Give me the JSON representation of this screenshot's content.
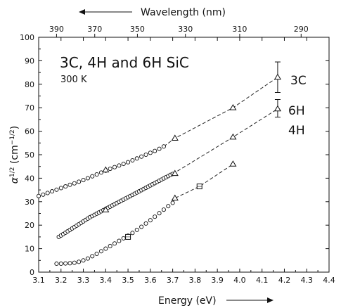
{
  "chart_data": {
    "type": "scatter",
    "title": "3C, 4H and 6H SiC",
    "subtitle": "300  K",
    "xlabel": "Energy (eV)",
    "ylabel": "α^(1/2) (cm^-1/2)",
    "ylabel_parts": {
      "alpha": "α",
      "exp_outer": "1/2",
      "open": " (cm",
      "exp_inner": "−1/2",
      "close": ")"
    },
    "x2label": "Wavelength (nm)",
    "xlim": [
      3.1,
      4.4
    ],
    "ylim": [
      0,
      100
    ],
    "x_ticks": [
      "3.1",
      "3.2",
      "3.3",
      "3.4",
      "3.5",
      "3.6",
      "3.7",
      "3.8",
      "3.9",
      "4.0",
      "4.1",
      "4.2",
      "4.3",
      "4.4"
    ],
    "y_ticks": [
      "0",
      "10",
      "20",
      "30",
      "40",
      "50",
      "60",
      "70",
      "80",
      "90",
      "100"
    ],
    "wavelength_ticks": [
      {
        "label": "390",
        "energy": 3.18
      },
      {
        "label": "370",
        "energy": 3.351
      },
      {
        "label": "350",
        "energy": 3.542
      },
      {
        "label": "330",
        "energy": 3.757
      },
      {
        "label": "310",
        "energy": 4.0
      },
      {
        "label": "290",
        "energy": 4.275
      }
    ],
    "grid": false,
    "series": [
      {
        "name": "3C",
        "circles": [
          [
            3.1,
            32.4
          ],
          [
            3.12,
            33.0
          ],
          [
            3.14,
            33.7
          ],
          [
            3.16,
            34.4
          ],
          [
            3.18,
            35.1
          ],
          [
            3.2,
            35.8
          ],
          [
            3.22,
            36.5
          ],
          [
            3.24,
            37.2
          ],
          [
            3.26,
            37.8
          ],
          [
            3.28,
            38.5
          ],
          [
            3.3,
            39.2
          ],
          [
            3.32,
            40.0
          ],
          [
            3.34,
            40.8
          ],
          [
            3.36,
            41.6
          ],
          [
            3.38,
            42.4
          ],
          [
            3.4,
            43.2
          ],
          [
            3.42,
            44.0
          ],
          [
            3.44,
            44.7
          ],
          [
            3.46,
            45.4
          ],
          [
            3.48,
            46.1
          ],
          [
            3.5,
            46.8
          ],
          [
            3.52,
            47.6
          ],
          [
            3.54,
            48.4
          ],
          [
            3.56,
            49.2
          ],
          [
            3.58,
            50.0
          ],
          [
            3.6,
            50.8
          ],
          [
            3.62,
            51.6
          ],
          [
            3.64,
            52.5
          ],
          [
            3.66,
            53.5
          ]
        ],
        "triangles": [
          [
            3.4,
            43.5
          ],
          [
            3.71,
            57.0
          ],
          [
            3.97,
            70.0
          ],
          [
            4.17,
            83.0
          ]
        ],
        "error_bars": [
          {
            "x": 4.17,
            "y": 83.0,
            "low": 76.5,
            "high": 89.5
          }
        ],
        "dashed": [
          [
            3.66,
            53.5
          ],
          [
            3.71,
            57.0
          ],
          [
            3.97,
            70.0
          ],
          [
            4.17,
            83.0
          ]
        ],
        "label": "3C"
      },
      {
        "name": "6H",
        "circles": [
          [
            3.19,
            15.0
          ],
          [
            3.2,
            15.6
          ],
          [
            3.21,
            16.2
          ],
          [
            3.22,
            16.8
          ],
          [
            3.23,
            17.4
          ],
          [
            3.24,
            18.0
          ],
          [
            3.25,
            18.6
          ],
          [
            3.26,
            19.2
          ],
          [
            3.27,
            19.8
          ],
          [
            3.28,
            20.4
          ],
          [
            3.29,
            21.0
          ],
          [
            3.3,
            21.6
          ],
          [
            3.31,
            22.2
          ],
          [
            3.32,
            22.8
          ],
          [
            3.33,
            23.4
          ],
          [
            3.34,
            23.9
          ],
          [
            3.35,
            24.4
          ],
          [
            3.36,
            24.9
          ],
          [
            3.37,
            25.4
          ],
          [
            3.38,
            25.9
          ],
          [
            3.39,
            26.4
          ],
          [
            3.4,
            26.9
          ],
          [
            3.41,
            27.4
          ],
          [
            3.42,
            27.9
          ],
          [
            3.43,
            28.4
          ],
          [
            3.44,
            28.9
          ],
          [
            3.45,
            29.4
          ],
          [
            3.46,
            29.9
          ],
          [
            3.47,
            30.4
          ],
          [
            3.48,
            30.9
          ],
          [
            3.49,
            31.4
          ],
          [
            3.5,
            31.9
          ],
          [
            3.51,
            32.4
          ],
          [
            3.52,
            32.9
          ],
          [
            3.53,
            33.4
          ],
          [
            3.54,
            33.9
          ],
          [
            3.55,
            34.4
          ],
          [
            3.56,
            34.9
          ],
          [
            3.57,
            35.4
          ],
          [
            3.58,
            35.9
          ],
          [
            3.59,
            36.4
          ],
          [
            3.6,
            36.9
          ],
          [
            3.61,
            37.4
          ],
          [
            3.62,
            37.9
          ],
          [
            3.63,
            38.4
          ],
          [
            3.64,
            38.9
          ],
          [
            3.65,
            39.4
          ],
          [
            3.66,
            39.9
          ],
          [
            3.67,
            40.4
          ],
          [
            3.68,
            40.9
          ],
          [
            3.69,
            41.4
          ],
          [
            3.7,
            41.8
          ]
        ],
        "triangles": [
          [
            3.4,
            26.5
          ],
          [
            3.71,
            42.0
          ],
          [
            3.97,
            57.5
          ],
          [
            4.17,
            69.5
          ]
        ],
        "error_bars": [
          {
            "x": 4.17,
            "y": 69.5,
            "low": 66.0,
            "high": 73.5
          }
        ],
        "dashed": [
          [
            3.7,
            41.8
          ],
          [
            3.97,
            57.5
          ],
          [
            4.17,
            69.5
          ]
        ],
        "label": "6H"
      },
      {
        "name": "4H",
        "circles": [
          [
            3.18,
            3.6
          ],
          [
            3.2,
            3.6
          ],
          [
            3.22,
            3.7
          ],
          [
            3.24,
            3.8
          ],
          [
            3.26,
            4.0
          ],
          [
            3.28,
            4.4
          ],
          [
            3.3,
            5.0
          ],
          [
            3.32,
            5.8
          ],
          [
            3.34,
            6.8
          ],
          [
            3.36,
            7.8
          ],
          [
            3.38,
            8.9
          ],
          [
            3.4,
            10.0
          ],
          [
            3.42,
            11.1
          ],
          [
            3.44,
            12.2
          ],
          [
            3.46,
            13.3
          ],
          [
            3.48,
            14.4
          ],
          [
            3.5,
            15.5
          ],
          [
            3.52,
            16.7
          ],
          [
            3.54,
            18.0
          ],
          [
            3.56,
            19.3
          ],
          [
            3.58,
            20.7
          ],
          [
            3.6,
            22.1
          ],
          [
            3.62,
            23.6
          ],
          [
            3.64,
            25.1
          ],
          [
            3.66,
            26.6
          ],
          [
            3.68,
            28.1
          ],
          [
            3.7,
            29.5
          ]
        ],
        "triangles": [
          [
            3.71,
            31.5
          ],
          [
            3.97,
            46.0
          ]
        ],
        "squares": [
          [
            3.5,
            15.0
          ],
          [
            3.82,
            36.5
          ]
        ],
        "dashed": [
          [
            3.7,
            29.5
          ],
          [
            3.71,
            31.5
          ],
          [
            3.82,
            36.5
          ],
          [
            3.97,
            46.0
          ]
        ],
        "label": "4H"
      }
    ]
  }
}
